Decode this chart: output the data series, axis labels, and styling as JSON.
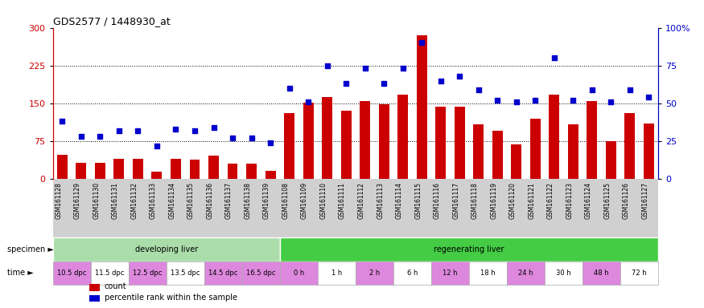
{
  "title": "GDS2577 / 1448930_at",
  "samples": [
    "GSM161128",
    "GSM161129",
    "GSM161130",
    "GSM161131",
    "GSM161132",
    "GSM161133",
    "GSM161134",
    "GSM161135",
    "GSM161136",
    "GSM161137",
    "GSM161138",
    "GSM161139",
    "GSM161108",
    "GSM161109",
    "GSM161110",
    "GSM161111",
    "GSM161112",
    "GSM161113",
    "GSM161114",
    "GSM161115",
    "GSM161116",
    "GSM161117",
    "GSM161118",
    "GSM161119",
    "GSM161120",
    "GSM161121",
    "GSM161122",
    "GSM161123",
    "GSM161124",
    "GSM161125",
    "GSM161126",
    "GSM161127"
  ],
  "bar_values": [
    48,
    32,
    32,
    40,
    40,
    14,
    40,
    38,
    46,
    30,
    30,
    16,
    130,
    152,
    163,
    135,
    155,
    148,
    168,
    285,
    143,
    143,
    108,
    95,
    68,
    120,
    168,
    108,
    155,
    75,
    130,
    110
  ],
  "dot_values_pct": [
    38,
    28,
    28,
    32,
    32,
    22,
    33,
    32,
    34,
    27,
    27,
    24,
    60,
    51,
    75,
    63,
    73,
    63,
    73,
    90,
    65,
    68,
    59,
    52,
    51,
    52,
    80,
    52,
    59,
    51,
    59,
    54
  ],
  "ylim_left": [
    0,
    300
  ],
  "ylim_right": [
    0,
    100
  ],
  "yticks_left": [
    0,
    75,
    150,
    225,
    300
  ],
  "yticks_right": [
    0,
    25,
    50,
    75,
    100
  ],
  "ytick_labels_right": [
    "0",
    "25",
    "50",
    "75",
    "100%"
  ],
  "hlines": [
    75,
    150,
    225
  ],
  "bar_color": "#cc0000",
  "dot_color": "#0000cc",
  "specimen_groups": [
    {
      "label": "developing liver",
      "color": "#aaddaa",
      "start": 0,
      "end": 12
    },
    {
      "label": "regenerating liver",
      "color": "#44cc44",
      "start": 12,
      "end": 32
    }
  ],
  "time_groups": [
    {
      "label": "10.5 dpc",
      "color": "#dd88dd",
      "start": 0,
      "end": 2
    },
    {
      "label": "11.5 dpc",
      "color": "#ffffff",
      "start": 2,
      "end": 4
    },
    {
      "label": "12.5 dpc",
      "color": "#dd88dd",
      "start": 4,
      "end": 6
    },
    {
      "label": "13.5 dpc",
      "color": "#ffffff",
      "start": 6,
      "end": 8
    },
    {
      "label": "14.5 dpc",
      "color": "#dd88dd",
      "start": 8,
      "end": 10
    },
    {
      "label": "16.5 dpc",
      "color": "#dd88dd",
      "start": 10,
      "end": 12
    },
    {
      "label": "0 h",
      "color": "#dd88dd",
      "start": 12,
      "end": 14
    },
    {
      "label": "1 h",
      "color": "#ffffff",
      "start": 14,
      "end": 16
    },
    {
      "label": "2 h",
      "color": "#dd88dd",
      "start": 16,
      "end": 18
    },
    {
      "label": "6 h",
      "color": "#ffffff",
      "start": 18,
      "end": 20
    },
    {
      "label": "12 h",
      "color": "#dd88dd",
      "start": 20,
      "end": 22
    },
    {
      "label": "18 h",
      "color": "#ffffff",
      "start": 22,
      "end": 24
    },
    {
      "label": "24 h",
      "color": "#dd88dd",
      "start": 24,
      "end": 26
    },
    {
      "label": "30 h",
      "color": "#ffffff",
      "start": 26,
      "end": 28
    },
    {
      "label": "48 h",
      "color": "#dd88dd",
      "start": 28,
      "end": 30
    },
    {
      "label": "72 h",
      "color": "#ffffff",
      "start": 30,
      "end": 32
    }
  ],
  "legend_items": [
    {
      "label": "count",
      "color": "#cc0000"
    },
    {
      "label": "percentile rank within the sample",
      "color": "#0000cc"
    }
  ],
  "bg_color": "#d8d8d8",
  "tick_bg_color": "#d0d0d0"
}
